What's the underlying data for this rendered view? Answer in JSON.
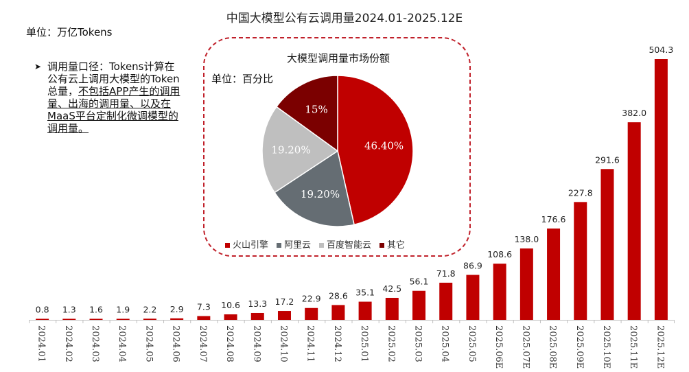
{
  "page": {
    "title": "中国大模型公有云调用量2024.01-2025.12E",
    "unit_label": "单位：万亿Tokens",
    "note": {
      "part1": "调用量口径：Tokens计算在公有云上调用大模型的Token总量，",
      "part2": "不包括APP产生的调用量、出海的调用量、以及在MaaS平台定制化微调模型的调用量。"
    }
  },
  "colors": {
    "bar": "#c00000",
    "axis": "#bfbfbf",
    "border": "#c0202a"
  },
  "chart_data": [
    {
      "type": "bar",
      "title": "中国大模型公有云调用量2024.01-2025.12E",
      "unit": "单位：万亿Tokens",
      "categories": [
        "2024.01",
        "2024.02",
        "2024.03",
        "2024.04",
        "2024.05",
        "2024.06",
        "2024.07",
        "2024.08",
        "2024.09",
        "2024.10",
        "2024.11",
        "2024.12",
        "2025.01",
        "2025.02",
        "2025.03",
        "2025.04",
        "2025.05",
        "2025.06E",
        "2025.07E",
        "2025.08E",
        "2025.09E",
        "2025.10E",
        "2025.11E",
        "2025.12E"
      ],
      "values": [
        0.8,
        1.3,
        1.6,
        1.9,
        2.2,
        2.9,
        7.3,
        10.6,
        13.3,
        17.2,
        22.9,
        28.6,
        35.1,
        42.5,
        56.1,
        71.8,
        86.9,
        108.6,
        138.0,
        176.6,
        227.8,
        291.6,
        382.0,
        504.3
      ],
      "value_labels": [
        "0.8",
        "1.3",
        "1.6",
        "1.9",
        "2.2",
        "2.9",
        "7.3",
        "10.6",
        "13.3",
        "17.2",
        "22.9",
        "28.6",
        "35.1",
        "42.5",
        "56.1",
        "71.8",
        "86.9",
        "108.6",
        "138.0",
        "176.6",
        "227.8",
        "291.6",
        "382.0",
        "504.3"
      ],
      "ylim": [
        0,
        504.3
      ],
      "xlabel": "",
      "ylabel": ""
    },
    {
      "type": "pie",
      "title": "大模型调用量市场份额",
      "unit": "单位：百分比",
      "labels": [
        "火山引擎",
        "阿里云",
        "百度智能云",
        "其它"
      ],
      "values": [
        46.4,
        19.2,
        19.2,
        15
      ],
      "value_labels": [
        "46.40%",
        "19.20%",
        "19.20%",
        "15%"
      ],
      "colors": [
        "#c00000",
        "#656d73",
        "#bfbfbf",
        "#7b0000"
      ],
      "label_colors": [
        "#ffffff",
        "#ffffff",
        "#ffffff",
        "#ffffff"
      ],
      "legend_position": "bottom"
    }
  ]
}
